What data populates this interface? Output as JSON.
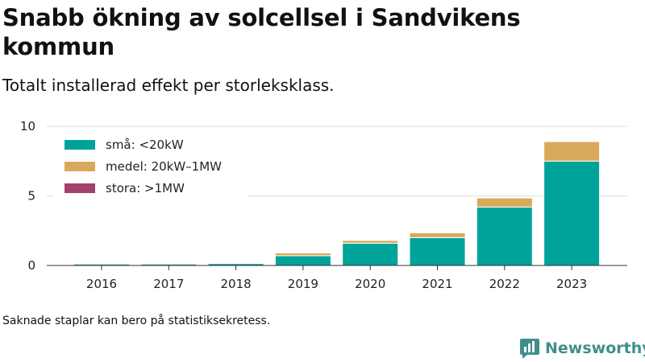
{
  "title": "Snabb ökning av solcellsel i Sandvikens kommun",
  "subtitle": "Totalt installerad effekt per storleksklass.",
  "footnote": "Saknade staplar kan bero på statistiksekretess.",
  "brand": {
    "name": "Newsworthy",
    "logo_icon": "bar-chart-bubble-icon",
    "color": "#3f8f8b"
  },
  "chart_data": {
    "type": "bar",
    "stacked": true,
    "categories": [
      "2016",
      "2017",
      "2018",
      "2019",
      "2020",
      "2021",
      "2022",
      "2023"
    ],
    "series": [
      {
        "name": "små: <20kW",
        "color": "#00a39a",
        "values": [
          0.1,
          0.1,
          0.15,
          0.7,
          1.6,
          2.0,
          4.2,
          7.5
        ]
      },
      {
        "name": "medel: 20kW–1MW",
        "color": "#d9a95b",
        "values": [
          0.0,
          0.0,
          0.03,
          0.2,
          0.2,
          0.35,
          0.65,
          1.4
        ]
      },
      {
        "name": "stora: >1MW",
        "color": "#a3416b",
        "values": [
          0,
          0,
          0,
          0,
          0,
          0,
          0,
          0
        ]
      }
    ],
    "yticks": [
      0,
      5,
      10
    ],
    "ylim": [
      0,
      10
    ],
    "grid": true,
    "legend_position": "top-left"
  }
}
